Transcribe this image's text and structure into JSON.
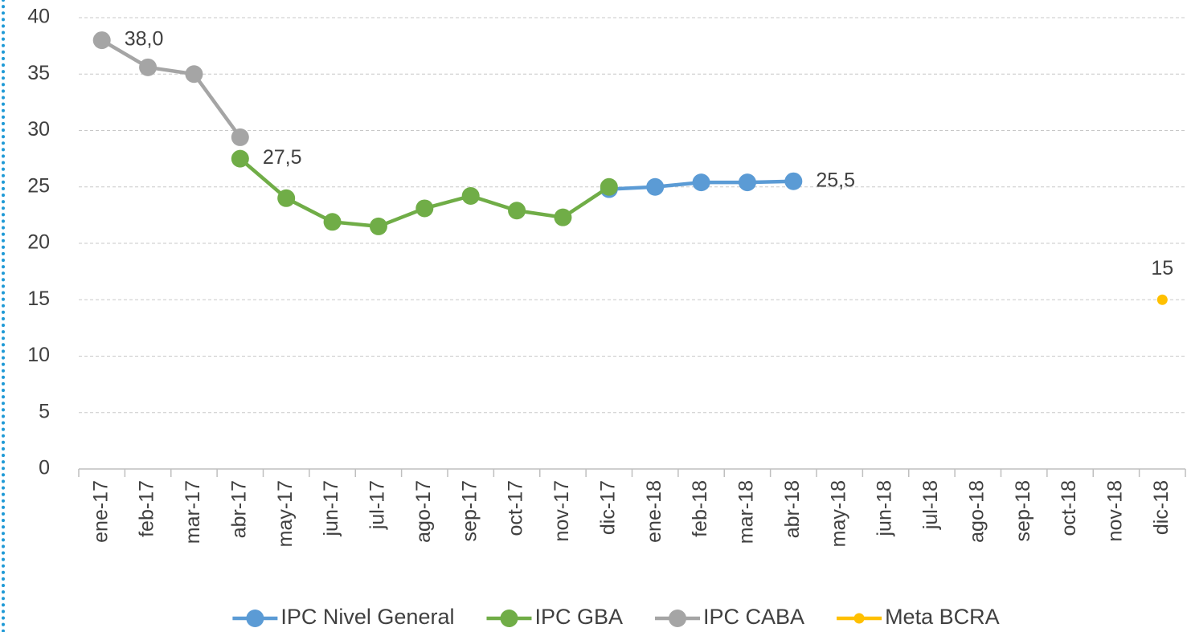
{
  "chart_data": {
    "type": "line",
    "categories": [
      "ene-17",
      "feb-17",
      "mar-17",
      "abr-17",
      "may-17",
      "jun-17",
      "jul-17",
      "ago-17",
      "sep-17",
      "oct-17",
      "nov-17",
      "dic-17",
      "ene-18",
      "feb-18",
      "mar-18",
      "abr-18",
      "may-18",
      "jun-18",
      "jul-18",
      "ago-18",
      "sep-18",
      "oct-18",
      "nov-18",
      "dic-18"
    ],
    "series": [
      {
        "name": "IPC Nivel General",
        "color": "#5b9bd5",
        "values": [
          null,
          null,
          null,
          null,
          null,
          null,
          null,
          null,
          null,
          null,
          null,
          24.8,
          25.0,
          25.4,
          25.4,
          25.5,
          null,
          null,
          null,
          null,
          null,
          null,
          null,
          null
        ],
        "value_labels": [
          null,
          null,
          null,
          null,
          null,
          null,
          null,
          null,
          null,
          null,
          null,
          null,
          null,
          null,
          null,
          "25,5",
          null,
          null,
          null,
          null,
          null,
          null,
          null,
          null
        ]
      },
      {
        "name": "IPC GBA",
        "color": "#70ad47",
        "values": [
          null,
          null,
          null,
          27.5,
          24.0,
          21.9,
          21.5,
          23.1,
          24.2,
          22.9,
          22.3,
          25.0,
          null,
          null,
          null,
          null,
          null,
          null,
          null,
          null,
          null,
          null,
          null,
          null
        ],
        "value_labels": [
          null,
          null,
          null,
          "27,5",
          null,
          null,
          null,
          null,
          null,
          null,
          null,
          null,
          null,
          null,
          null,
          null,
          null,
          null,
          null,
          null,
          null,
          null,
          null,
          null
        ]
      },
      {
        "name": "IPC CABA",
        "color": "#a5a5a5",
        "values": [
          38.0,
          35.6,
          35.0,
          29.4,
          null,
          null,
          null,
          null,
          null,
          null,
          null,
          null,
          null,
          null,
          null,
          null,
          null,
          null,
          null,
          null,
          null,
          null,
          null,
          null
        ],
        "value_labels": [
          "38,0",
          null,
          null,
          null,
          null,
          null,
          null,
          null,
          null,
          null,
          null,
          null,
          null,
          null,
          null,
          null,
          null,
          null,
          null,
          null,
          null,
          null,
          null,
          null
        ]
      },
      {
        "name": "Meta BCRA",
        "color": "#ffc000",
        "values": [
          null,
          null,
          null,
          null,
          null,
          null,
          null,
          null,
          null,
          null,
          null,
          null,
          null,
          null,
          null,
          null,
          null,
          null,
          null,
          null,
          null,
          null,
          null,
          15
        ],
        "value_labels": [
          null,
          null,
          null,
          null,
          null,
          null,
          null,
          null,
          null,
          null,
          null,
          null,
          null,
          null,
          null,
          null,
          null,
          null,
          null,
          null,
          null,
          null,
          null,
          "15"
        ]
      }
    ],
    "ylim": [
      0,
      40
    ],
    "yticks": [
      0,
      5,
      10,
      15,
      20,
      25,
      30,
      35,
      40
    ],
    "grid": true,
    "legend": "bottom"
  }
}
